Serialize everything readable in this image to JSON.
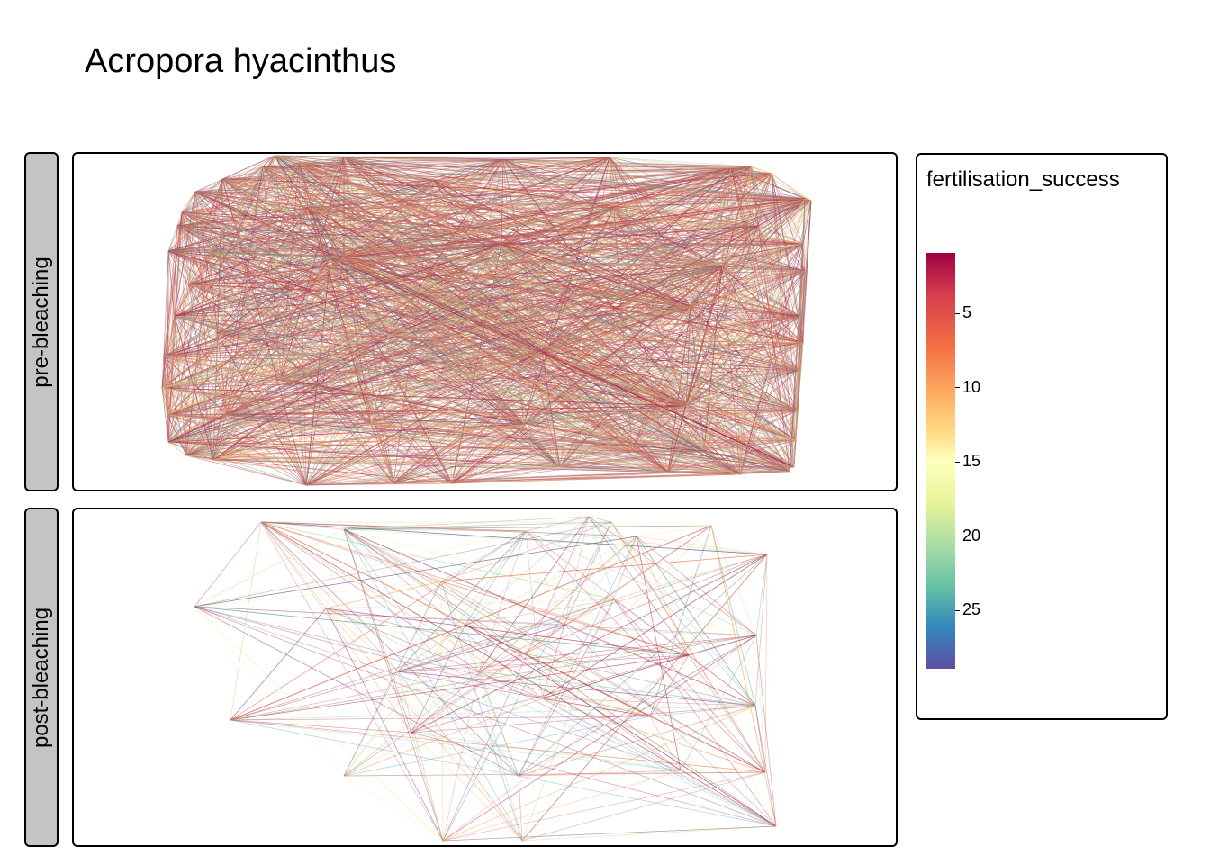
{
  "chart_data": {
    "type": "network",
    "title": "Acropora hyacinthus",
    "facets": [
      "pre-bleaching",
      "post-bleaching"
    ],
    "legend": {
      "title": "fertilisation_success",
      "ticks": [
        5,
        10,
        15,
        20,
        25
      ],
      "range": [
        1,
        29
      ],
      "palette": [
        "#9e0142",
        "#d53e4f",
        "#f46d43",
        "#fdae61",
        "#fee08b",
        "#ffffbf",
        "#e6f598",
        "#abdda4",
        "#66c2a5",
        "#3288bd",
        "#5e4fa2"
      ],
      "position": "right"
    }
  }
}
